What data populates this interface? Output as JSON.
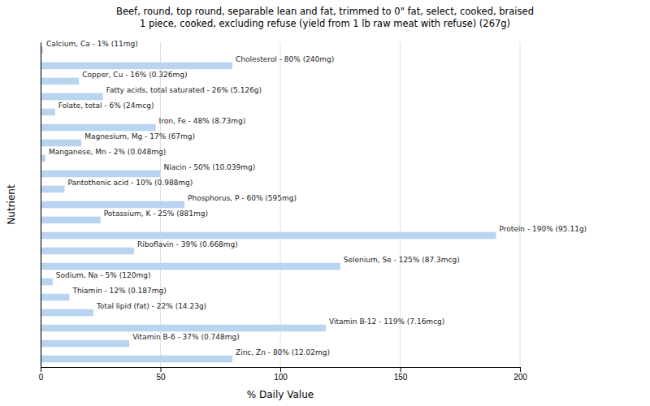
{
  "chart_data": {
    "type": "bar",
    "orientation": "horizontal",
    "title": "Beef, round, top round, separable lean and fat, trimmed to 0\" fat, select, cooked, braised\n1 piece, cooked, excluding refuse (yield from 1 lb raw meat with refuse) (267g)",
    "xlabel": "% Daily Value",
    "ylabel": "Nutrient",
    "categories": [
      "Calcium, Ca - 1% (11mg)",
      "Cholesterol - 80% (240mg)",
      "Copper, Cu - 16% (0.326mg)",
      "Fatty acids, total saturated - 26% (5.126g)",
      "Folate, total - 6% (24mcg)",
      "Iron, Fe - 48% (8.73mg)",
      "Magnesium, Mg - 17% (67mg)",
      "Manganese, Mn - 2% (0.048mg)",
      "Niacin - 50% (10.039mg)",
      "Pantothenic acid - 10% (0.988mg)",
      "Phosphorus, P - 60% (595mg)",
      "Potassium, K - 25% (881mg)",
      "Protein - 190% (95.11g)",
      "Riboflavin - 39% (0.668mg)",
      "Selenium, Se - 125% (87.3mcg)",
      "Sodium, Na - 5% (120mg)",
      "Thiamin - 12% (0.187mg)",
      "Total lipid (fat) - 22% (14.23g)",
      "Vitamin B-12 - 119% (7.16mcg)",
      "Vitamin B-6 - 37% (0.748mg)",
      "Zinc, Zn - 80% (12.02mg)"
    ],
    "values": [
      1,
      80,
      16,
      26,
      6,
      48,
      17,
      2,
      50,
      10,
      60,
      25,
      190,
      39,
      125,
      5,
      12,
      22,
      119,
      37,
      80
    ],
    "color": "#b8d4f0",
    "xlim": [
      0,
      200
    ],
    "xticks": [
      0,
      50,
      100,
      150,
      200
    ],
    "grid": true,
    "tick_labels": "x"
  }
}
